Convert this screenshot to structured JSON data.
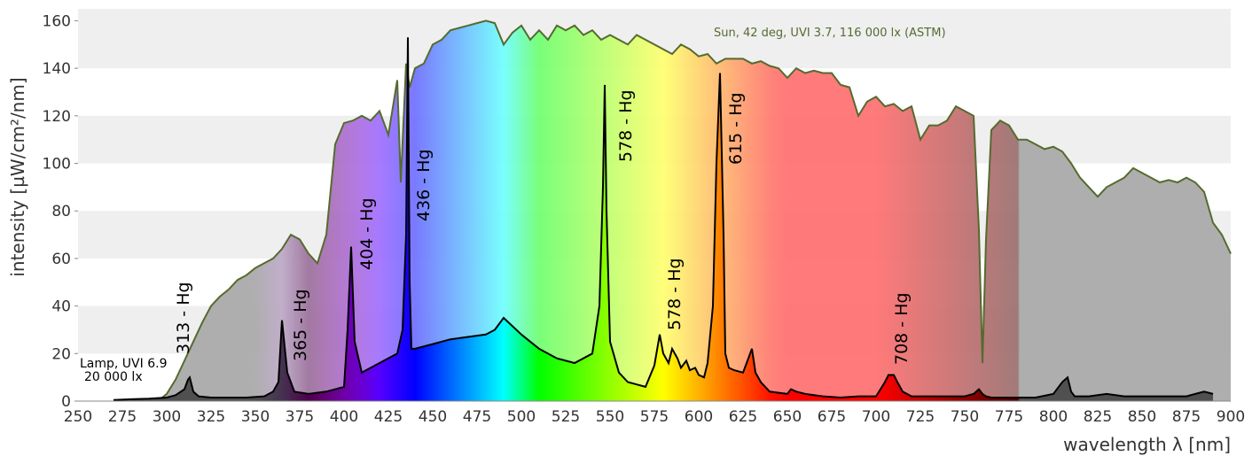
{
  "chart_data": {
    "type": "line",
    "title": "",
    "xlabel": "wavelength λ [nm]",
    "ylabel": "intensity [µW/cm²/nm]",
    "xlim": [
      250,
      900
    ],
    "ylim": [
      0,
      165
    ],
    "xticks": [
      250,
      275,
      300,
      325,
      350,
      375,
      400,
      425,
      450,
      475,
      500,
      525,
      550,
      575,
      600,
      625,
      650,
      675,
      700,
      725,
      750,
      775,
      800,
      825,
      850,
      875,
      900
    ],
    "yticks": [
      0,
      20,
      40,
      60,
      80,
      100,
      120,
      140,
      160
    ],
    "grid": "horizontal-bands",
    "series": [
      {
        "name": "Sun, 42 deg, UVI 3.7, 116 000 lx (ASTM)",
        "color": "#556b2f",
        "x": [
          295,
          300,
          305,
          310,
          315,
          320,
          325,
          330,
          335,
          340,
          345,
          350,
          355,
          360,
          365,
          370,
          375,
          380,
          385,
          390,
          395,
          400,
          405,
          410,
          415,
          420,
          425,
          430,
          432,
          435,
          437,
          440,
          445,
          450,
          455,
          460,
          465,
          470,
          475,
          480,
          485,
          490,
          495,
          500,
          505,
          510,
          515,
          520,
          525,
          530,
          535,
          540,
          545,
          550,
          555,
          560,
          565,
          570,
          575,
          580,
          585,
          590,
          595,
          600,
          605,
          610,
          615,
          620,
          625,
          630,
          635,
          640,
          645,
          650,
          655,
          660,
          665,
          670,
          675,
          680,
          685,
          690,
          695,
          700,
          705,
          710,
          715,
          720,
          725,
          730,
          735,
          740,
          745,
          750,
          755,
          758,
          760,
          762,
          765,
          770,
          775,
          780,
          785,
          790,
          795,
          800,
          805,
          810,
          815,
          820,
          825,
          830,
          835,
          840,
          845,
          850,
          855,
          860,
          865,
          870,
          875,
          880,
          885,
          890,
          895,
          900
        ],
        "values": [
          0,
          3,
          9,
          17,
          25,
          33,
          40,
          44,
          47,
          51,
          53,
          56,
          58,
          60,
          64,
          70,
          68,
          62,
          58,
          70,
          108,
          117,
          118,
          120,
          118,
          122,
          112,
          135,
          92,
          142,
          132,
          140,
          142,
          150,
          152,
          156,
          157,
          158,
          159,
          160,
          159,
          150,
          155,
          158,
          152,
          156,
          152,
          158,
          156,
          158,
          154,
          156,
          152,
          154,
          152,
          150,
          154,
          152,
          150,
          148,
          146,
          150,
          148,
          145,
          146,
          142,
          144,
          144,
          144,
          142,
          143,
          141,
          140,
          136,
          140,
          138,
          139,
          138,
          138,
          133,
          132,
          120,
          126,
          128,
          124,
          125,
          122,
          124,
          110,
          116,
          116,
          118,
          124,
          122,
          120,
          72,
          16,
          68,
          114,
          118,
          116,
          110,
          110,
          108,
          106,
          107,
          105,
          100,
          94,
          90,
          86,
          90,
          92,
          94,
          98,
          96,
          94,
          92,
          93,
          92,
          94,
          92,
          88,
          75,
          70,
          62
        ],
        "fill": "spectrum"
      },
      {
        "name": "Lamp, UVI 6.9 20 000 lx",
        "color": "#000000",
        "x": [
          270,
          280,
          290,
          300,
          305,
          310,
          312,
          313,
          315,
          318,
          325,
          335,
          345,
          355,
          360,
          363,
          365,
          368,
          372,
          380,
          390,
          400,
          402,
          404,
          406,
          410,
          420,
          430,
          433,
          435,
          436,
          437,
          438,
          440,
          450,
          460,
          470,
          480,
          485,
          488,
          490,
          500,
          510,
          520,
          530,
          540,
          544,
          546,
          547,
          548,
          550,
          555,
          560,
          565,
          570,
          575,
          578,
          580,
          583,
          585,
          588,
          590,
          593,
          595,
          598,
          600,
          603,
          605,
          608,
          610,
          612,
          614,
          615,
          617,
          620,
          625,
          628,
          630,
          632,
          635,
          640,
          650,
          652,
          655,
          660,
          670,
          680,
          690,
          700,
          705,
          707,
          710,
          712,
          715,
          720,
          730,
          740,
          750,
          755,
          758,
          760,
          762,
          765,
          770,
          780,
          790,
          800,
          805,
          808,
          810,
          812,
          815,
          820,
          830,
          840,
          850,
          860,
          870,
          875,
          880,
          885,
          890
        ],
        "values": [
          0.5,
          0.8,
          1.0,
          1.5,
          2.5,
          5,
          9,
          10,
          4,
          2,
          1.5,
          1.5,
          1.5,
          2,
          4,
          8,
          34,
          12,
          4,
          3,
          4,
          6,
          30,
          65,
          25,
          12,
          16,
          20,
          30,
          70,
          153,
          50,
          22,
          22,
          24,
          26,
          27,
          28,
          30,
          33,
          35,
          28,
          22,
          18,
          16,
          20,
          40,
          90,
          133,
          80,
          25,
          12,
          8,
          7,
          6,
          15,
          28,
          20,
          16,
          22,
          18,
          14,
          17,
          13,
          14,
          11,
          10,
          16,
          40,
          100,
          138,
          70,
          20,
          14,
          13,
          12,
          18,
          22,
          12,
          8,
          4,
          3,
          5,
          4,
          3,
          2,
          1.5,
          2,
          2,
          8,
          11,
          11,
          8,
          4,
          2,
          2,
          2,
          2,
          3,
          5,
          3,
          2,
          1.5,
          1.5,
          1.5,
          1.5,
          3,
          8,
          10,
          4,
          2,
          2,
          2,
          3,
          2,
          2,
          2,
          2,
          2,
          3,
          4,
          3
        ],
        "fill": "spectrum"
      }
    ],
    "annotations": [
      {
        "text": "313 - Hg"
      },
      {
        "text": "365 - Hg"
      },
      {
        "text": "404 - Hg"
      },
      {
        "text": "436 - Hg"
      },
      {
        "text": "578 - Hg"
      },
      {
        "text": "578 - Hg"
      },
      {
        "text": "615 - Hg"
      },
      {
        "text": "708 - Hg"
      }
    ],
    "legend": {
      "sun": "Sun, 42 deg, UVI 3.7, 116 000 lx (ASTM)",
      "lamp_line1": "Lamp, UVI 6.9",
      "lamp_line2": "20 000 lx"
    }
  }
}
